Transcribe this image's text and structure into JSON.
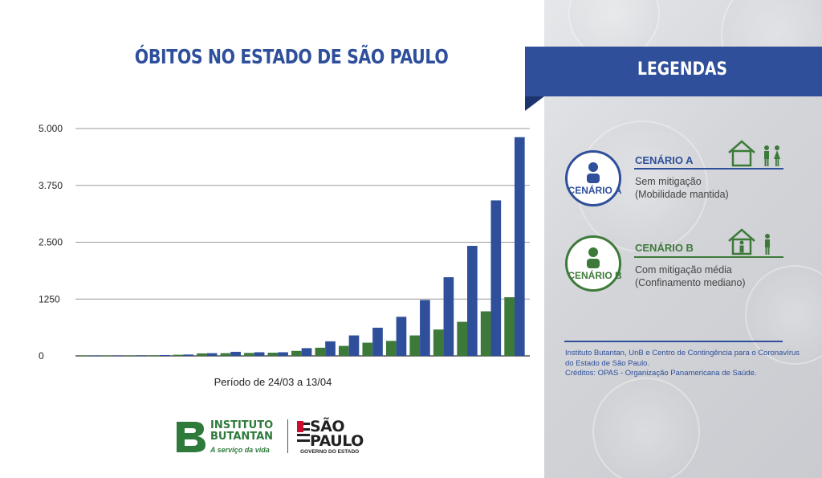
{
  "chart_data": {
    "type": "bar",
    "title": "ÓBITOS NO ESTADO DE SÃO PAULO",
    "xlabel": "Período de 24/03 a 13/04",
    "ylabel": "",
    "ylim": [
      0,
      5000
    ],
    "yticks": [
      {
        "value": 0,
        "label": "0"
      },
      {
        "value": 1250,
        "label": "1250"
      },
      {
        "value": 2500,
        "label": "2.500"
      },
      {
        "value": 3750,
        "label": "3.750"
      },
      {
        "value": 5000,
        "label": "5.000"
      }
    ],
    "grid": true,
    "series": [
      {
        "name": "CENÁRIO B",
        "color": "#3d7a3a",
        "values": [
          5,
          8,
          10,
          12,
          25,
          55,
          60,
          65,
          70,
          110,
          180,
          220,
          290,
          330,
          450,
          580,
          750,
          980,
          1290
        ]
      },
      {
        "name": "CENÁRIO A",
        "color": "#2f4f9b",
        "values": [
          6,
          9,
          12,
          18,
          30,
          60,
          90,
          80,
          80,
          170,
          320,
          450,
          620,
          860,
          1230,
          1730,
          2420,
          3420,
          4810
        ]
      }
    ]
  },
  "legend": {
    "banner": "LEGENDAS",
    "scenario_a": {
      "badge": "CENÁRIO A",
      "title": "CENÁRIO A",
      "line1": "Sem mitigação",
      "line2": "(Mobilidade mantida)",
      "color": "#2f4f9b",
      "icon": "house-with-family-outside-icon"
    },
    "scenario_b": {
      "badge": "CENÁRIO B",
      "title": "CENÁRIO B",
      "line1": "Com mitigação média",
      "line2": "(Confinamento mediano)",
      "color": "#3d7a3a",
      "icon": "house-with-person-inside-icon"
    },
    "credits": {
      "line1": "Instituto Butantan, UnB e Centro de Contingência para o Coronavírus",
      "line2": "do Estado de São Paulo.",
      "line3": "Créditos: OPAS - Organização Panamericana de Saúde."
    }
  },
  "logos": {
    "butantan_line1": "INSTITUTO",
    "butantan_line2": "BUTANTAN",
    "butantan_sub": "A serviço da vida",
    "sp_line1": "SÃO",
    "sp_line2": "PAULO",
    "sp_sub": "GOVERNO DO ESTADO"
  }
}
